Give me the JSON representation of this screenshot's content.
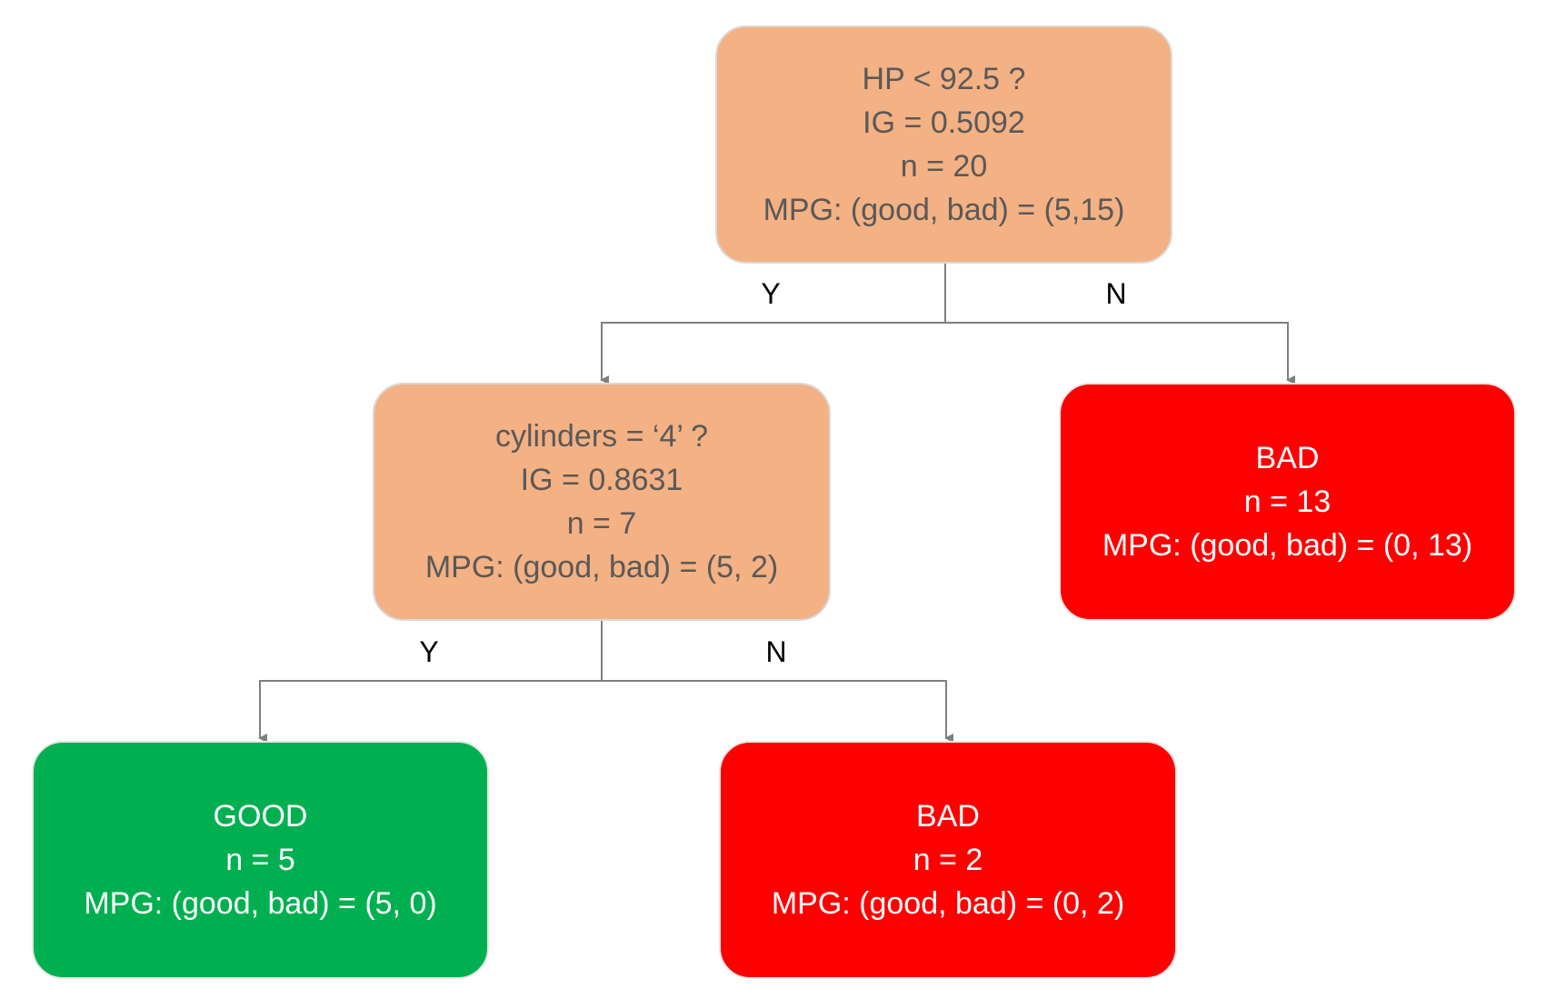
{
  "nodes": {
    "root": {
      "lines": [
        "HP < 92.5 ?",
        "IG = 0.5092",
        "n = 20",
        "MPG: (good, bad) = (5,15)"
      ],
      "color": "#f4b183"
    },
    "cylinders": {
      "lines": [
        "cylinders = ‘4’ ?",
        "IG = 0.8631",
        "n = 7",
        "MPG: (good, bad) = (5, 2)"
      ],
      "color": "#f4b183"
    },
    "bad_right": {
      "lines": [
        "BAD",
        "n = 13",
        "MPG: (good, bad) = (0, 13)"
      ],
      "color": "#ff0000"
    },
    "good_leaf": {
      "lines": [
        "GOOD",
        "n = 5",
        "MPG: (good, bad) = (5, 0)"
      ],
      "color": "#00b050"
    },
    "bad_leaf": {
      "lines": [
        "BAD",
        "n = 2",
        "MPG: (good, bad) = (0, 2)"
      ],
      "color": "#ff0000"
    }
  },
  "edges": {
    "root_yes": "Y",
    "root_no": "N",
    "cyl_yes": "Y",
    "cyl_no": "N"
  }
}
